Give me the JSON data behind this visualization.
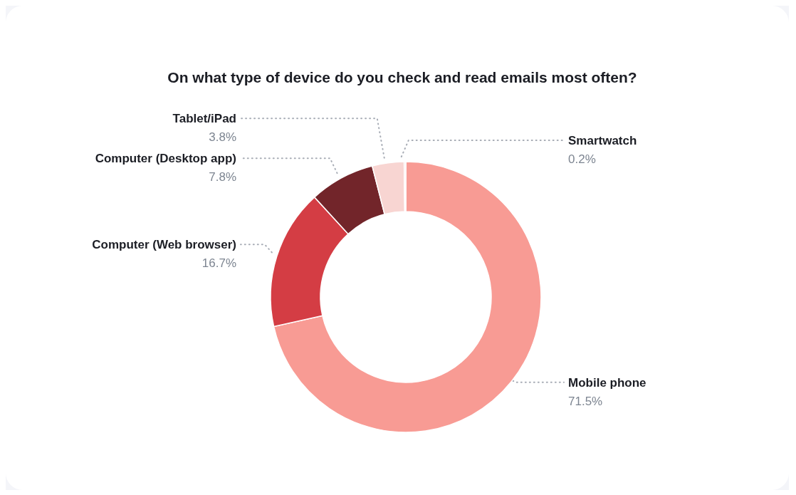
{
  "chart_data": {
    "type": "donut",
    "title": "On what type of device do you check and read emails most often?",
    "categories": [
      "Mobile phone",
      "Computer (Web browser)",
      "Computer (Desktop app)",
      "Tablet/iPad",
      "Smartwatch"
    ],
    "values": [
      71.5,
      16.7,
      7.8,
      3.8,
      0.2
    ],
    "value_labels": [
      "71.5%",
      "16.7%",
      "7.8%",
      "3.8%",
      "0.2%"
    ],
    "colors": [
      "#f89b94",
      "#d43d44",
      "#72252a",
      "#f8d5d2",
      "#fbe6e4"
    ]
  }
}
